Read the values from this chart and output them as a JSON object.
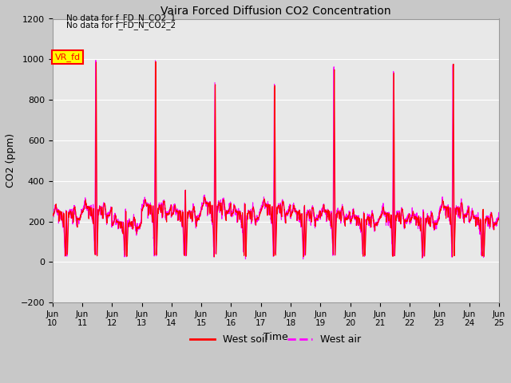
{
  "title": "Vaira Forced Diffusion CO2 Concentration",
  "xlabel": "Time",
  "ylabel": "CO2 (ppm)",
  "ylim": [
    -200,
    1200
  ],
  "yticks": [
    -200,
    0,
    200,
    400,
    600,
    800,
    1000,
    1200
  ],
  "soil_color": "#ff0000",
  "air_color": "#ff00ff",
  "legend_label_soil": "West soil",
  "legend_label_air": "West air",
  "annotation_text1": "No data for f_FD_N_CO2_1",
  "annotation_text2": "No data for f_FD_N_CO2_2",
  "legend_box_text": "VR_fd",
  "legend_box_color": "#ffff00",
  "legend_box_border": "#ff0000",
  "axes_bg_color": "#e8e8e8",
  "grid_color": "#ffffff",
  "fig_bg_color": "#c8c8c8",
  "xtick_labels": [
    "Jun\n10",
    "Jun\n11",
    "Jun\n12",
    "Jun\n13",
    "Jun\n14",
    "Jun\n15",
    "Jun\n16",
    "Jun\n17",
    "Jun\n18",
    "Jun\n19",
    "Jun\n20",
    "Jun\n21",
    "Jun\n22",
    "Jun\n23",
    "Jun\n24",
    "Jun\n25"
  ],
  "peak_heights": [
    270,
    1070,
    270,
    1070,
    380,
    950,
    310,
    940,
    300,
    1030,
    260,
    1010,
    270,
    1060,
    280,
    200
  ],
  "base_vals": [
    250,
    270,
    200,
    280,
    250,
    290,
    250,
    280,
    250,
    250,
    220,
    240,
    220,
    270,
    220,
    180
  ]
}
